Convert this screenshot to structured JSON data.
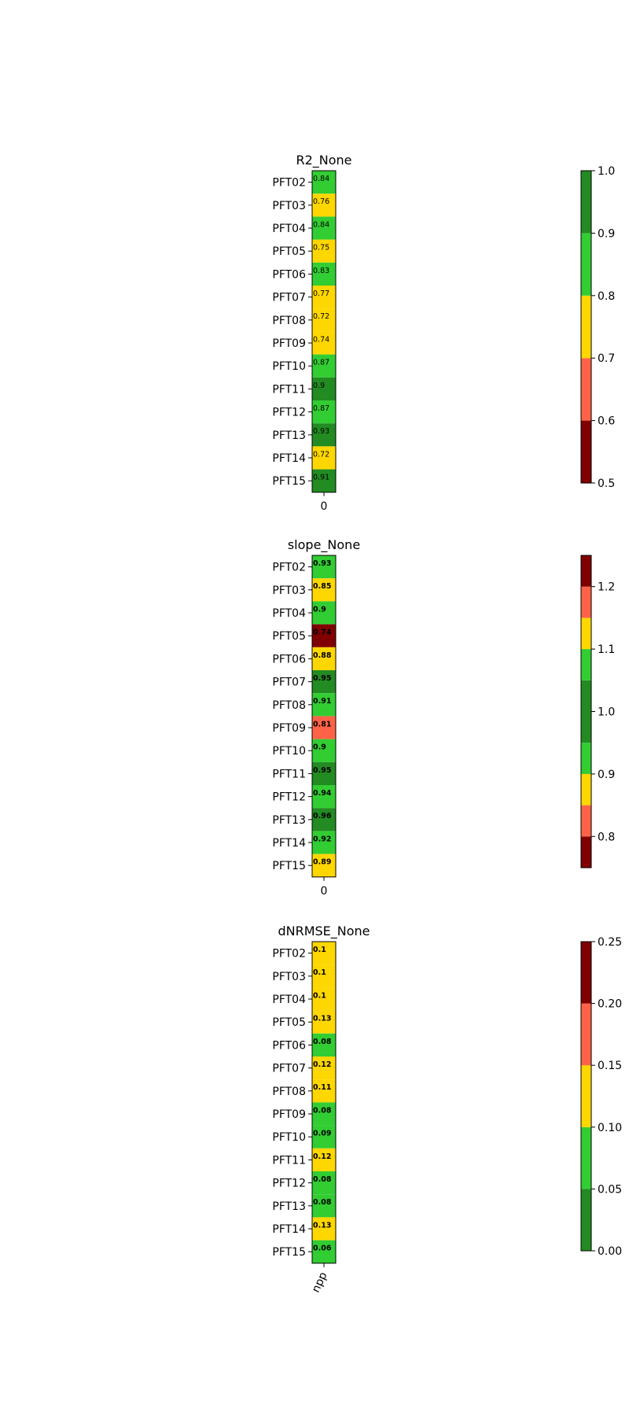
{
  "colors": {
    "dark_green": "#228b22",
    "green": "#32cd32",
    "gold": "#ffd700",
    "tomato": "#ff6347",
    "dark_red": "#800000"
  },
  "chart_data": [
    {
      "type": "heatmap",
      "title": "R2_None",
      "rows": [
        "PFT02",
        "PFT03",
        "PFT04",
        "PFT05",
        "PFT06",
        "PFT07",
        "PFT08",
        "PFT09",
        "PFT10",
        "PFT11",
        "PFT12",
        "PFT13",
        "PFT14",
        "PFT15"
      ],
      "columns": [
        "0"
      ],
      "values": [
        0.84,
        0.76,
        0.84,
        0.75,
        0.83,
        0.77,
        0.72,
        0.74,
        0.87,
        0.9,
        0.87,
        0.93,
        0.72,
        0.91
      ],
      "value_labels": [
        "0.84",
        "0.76",
        "0.84",
        "0.75",
        "0.83",
        "0.77",
        "0.72",
        "0.74",
        "0.87",
        "0.9",
        "0.87",
        "0.93",
        "0.72",
        "0.91"
      ],
      "label_bold": false,
      "x_tick_rotation": 0,
      "colorbar": {
        "range": [
          0.5,
          1.0
        ],
        "ticks": [
          "0.5",
          "0.6",
          "0.7",
          "0.8",
          "0.9",
          "1.0"
        ],
        "bins": [
          {
            "from": 0.5,
            "to": 0.6,
            "color": "#800000"
          },
          {
            "from": 0.6,
            "to": 0.7,
            "color": "#ff6347"
          },
          {
            "from": 0.7,
            "to": 0.8,
            "color": "#ffd700"
          },
          {
            "from": 0.8,
            "to": 0.9,
            "color": "#32cd32"
          },
          {
            "from": 0.9,
            "to": 1.0,
            "color": "#228b22"
          }
        ]
      }
    },
    {
      "type": "heatmap",
      "title": "slope_None",
      "rows": [
        "PFT02",
        "PFT03",
        "PFT04",
        "PFT05",
        "PFT06",
        "PFT07",
        "PFT08",
        "PFT09",
        "PFT10",
        "PFT11",
        "PFT12",
        "PFT13",
        "PFT14",
        "PFT15"
      ],
      "columns": [
        "0"
      ],
      "values": [
        0.93,
        0.85,
        0.9,
        0.74,
        0.88,
        0.95,
        0.91,
        0.81,
        0.9,
        0.95,
        0.94,
        0.96,
        0.92,
        0.89
      ],
      "value_labels": [
        "0.93",
        "0.85",
        "0.9",
        "0.74",
        "0.88",
        "0.95",
        "0.91",
        "0.81",
        "0.9",
        "0.95",
        "0.94",
        "0.96",
        "0.92",
        "0.89"
      ],
      "label_bold": true,
      "x_tick_rotation": 0,
      "colorbar": {
        "range": [
          0.75,
          1.25
        ],
        "ticks": [
          "0.8",
          "0.9",
          "1.0",
          "1.1",
          "1.2"
        ],
        "tick_values": [
          0.8,
          0.9,
          1.0,
          1.1,
          1.2
        ],
        "bins": [
          {
            "from": 0.75,
            "to": 0.8,
            "color": "#800000"
          },
          {
            "from": 0.8,
            "to": 0.85,
            "color": "#ff6347"
          },
          {
            "from": 0.85,
            "to": 0.9,
            "color": "#ffd700"
          },
          {
            "from": 0.9,
            "to": 0.95,
            "color": "#32cd32"
          },
          {
            "from": 0.95,
            "to": 1.05,
            "color": "#228b22"
          },
          {
            "from": 1.05,
            "to": 1.1,
            "color": "#32cd32"
          },
          {
            "from": 1.1,
            "to": 1.15,
            "color": "#ffd700"
          },
          {
            "from": 1.15,
            "to": 1.2,
            "color": "#ff6347"
          },
          {
            "from": 1.2,
            "to": 1.25,
            "color": "#800000"
          }
        ]
      }
    },
    {
      "type": "heatmap",
      "title": "dNRMSE_None",
      "rows": [
        "PFT02",
        "PFT03",
        "PFT04",
        "PFT05",
        "PFT06",
        "PFT07",
        "PFT08",
        "PFT09",
        "PFT10",
        "PFT11",
        "PFT12",
        "PFT13",
        "PFT14",
        "PFT15"
      ],
      "columns": [
        "npp"
      ],
      "values": [
        0.1,
        0.1,
        0.1,
        0.13,
        0.08,
        0.12,
        0.11,
        0.08,
        0.09,
        0.12,
        0.08,
        0.08,
        0.13,
        0.06
      ],
      "value_labels": [
        "0.1",
        "0.1",
        "0.1",
        "0.13",
        "0.08",
        "0.12",
        "0.11",
        "0.08",
        "0.09",
        "0.12",
        "0.08",
        "0.08",
        "0.13",
        "0.06"
      ],
      "cell_colors": [
        "#ffd700",
        "#ffd700",
        "#ffd700",
        "#ffd700",
        "#32cd32",
        "#ffd700",
        "#ffd700",
        "#32cd32",
        "#32cd32",
        "#ffd700",
        "#32cd32",
        "#32cd32",
        "#ffd700",
        "#32cd32"
      ],
      "label_bold": true,
      "x_tick_rotation": -65,
      "colorbar": {
        "range": [
          0.0,
          0.25
        ],
        "ticks": [
          "0.00",
          "0.05",
          "0.10",
          "0.15",
          "0.20",
          "0.25"
        ],
        "bins": [
          {
            "from": 0.0,
            "to": 0.05,
            "color": "#228b22"
          },
          {
            "from": 0.05,
            "to": 0.1,
            "color": "#32cd32"
          },
          {
            "from": 0.1,
            "to": 0.15,
            "color": "#ffd700"
          },
          {
            "from": 0.15,
            "to": 0.2,
            "color": "#ff6347"
          },
          {
            "from": 0.2,
            "to": 0.25,
            "color": "#800000"
          }
        ]
      }
    }
  ]
}
